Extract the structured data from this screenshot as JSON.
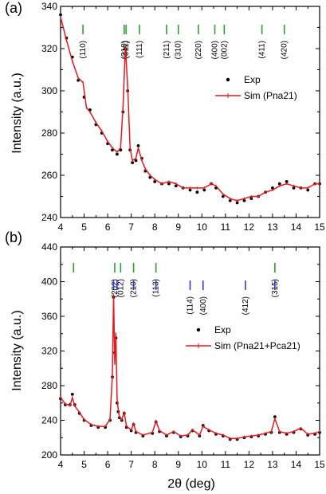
{
  "figure": {
    "panel_a_label": "(a)",
    "panel_b_label": "(b)",
    "xlabel": "2θ (deg)",
    "ylabel": "Intensity (a.u.)"
  },
  "colors": {
    "exp": "#000000",
    "sim": "#e8181c",
    "ticks_green": "#2ea02e",
    "ticks_blue": "#2b3bd6"
  },
  "chart_data": [
    {
      "panel": "(a)",
      "type": "line",
      "xlabel": "2θ (deg)",
      "ylabel": "Intensity (a.u.)",
      "xlim": [
        4,
        15
      ],
      "ylim": [
        240,
        340
      ],
      "xticks": [
        4,
        5,
        6,
        7,
        8,
        9,
        10,
        11,
        12,
        13,
        14,
        15
      ],
      "yticks": [
        240,
        260,
        280,
        300,
        320,
        340
      ],
      "legend": {
        "placement": "right",
        "entries": [
          "Exp",
          "Sim (Pna21)"
        ]
      },
      "reflections": [
        {
          "label": "(110)",
          "x": 4.95,
          "color": "green"
        },
        {
          "label": "(210)",
          "x": 6.7,
          "color": "green"
        },
        {
          "label": "(011)",
          "x": 6.78,
          "color": "green"
        },
        {
          "label": "(111)",
          "x": 7.35,
          "color": "green"
        },
        {
          "label": "(211)",
          "x": 8.5,
          "color": "green"
        },
        {
          "label": "(310)",
          "x": 9.0,
          "color": "green"
        },
        {
          "label": "(220)",
          "x": 9.85,
          "color": "green"
        },
        {
          "label": "(400)",
          "x": 10.55,
          "color": "green"
        },
        {
          "label": "(002)",
          "x": 10.95,
          "color": "green"
        },
        {
          "label": "(411)",
          "x": 12.55,
          "color": "green"
        },
        {
          "label": "(420)",
          "x": 13.5,
          "color": "green"
        }
      ],
      "series": [
        {
          "name": "Exp",
          "style": "points",
          "x": [
            4.0,
            4.25,
            4.5,
            4.75,
            5.0,
            5.25,
            5.5,
            5.75,
            6.0,
            6.2,
            6.4,
            6.55,
            6.65,
            6.75,
            6.85,
            6.95,
            7.05,
            7.2,
            7.3,
            7.45,
            7.6,
            7.8,
            8.0,
            8.3,
            8.6,
            8.9,
            9.2,
            9.5,
            9.8,
            10.1,
            10.4,
            10.6,
            10.9,
            11.2,
            11.5,
            11.8,
            12.1,
            12.4,
            12.7,
            13.0,
            13.3,
            13.6,
            13.9,
            14.2,
            14.5,
            14.8,
            15.0
          ],
          "y": [
            336,
            325,
            316,
            305,
            297,
            291,
            284,
            280,
            275,
            272,
            270,
            272,
            290,
            320,
            300,
            272,
            266,
            267,
            274,
            268,
            262,
            259,
            257,
            256,
            256,
            255,
            254,
            253,
            252,
            253,
            256,
            254,
            250,
            248,
            247,
            248,
            249,
            250,
            252,
            254,
            256,
            257,
            254,
            254,
            253,
            256,
            256
          ]
        },
        {
          "name": "Sim (Pna21)",
          "style": "line-with-markers",
          "x": [
            4.0,
            4.25,
            4.5,
            4.75,
            4.95,
            5.1,
            5.25,
            5.5,
            5.75,
            6.0,
            6.2,
            6.4,
            6.55,
            6.65,
            6.75,
            6.85,
            6.95,
            7.05,
            7.2,
            7.3,
            7.45,
            7.6,
            7.8,
            8.0,
            8.3,
            8.6,
            8.9,
            9.2,
            9.5,
            9.8,
            10.1,
            10.4,
            10.6,
            10.9,
            11.2,
            11.5,
            11.8,
            12.1,
            12.4,
            12.7,
            13.0,
            13.3,
            13.6,
            13.9,
            14.2,
            14.5,
            14.8,
            15.0
          ],
          "y": [
            335,
            324,
            314,
            306,
            304,
            292,
            290,
            285,
            281,
            276,
            273,
            271,
            273,
            292,
            321,
            302,
            273,
            267,
            268,
            273,
            267,
            263,
            260,
            258,
            256,
            257,
            256,
            254,
            254,
            254,
            254,
            256,
            255,
            251,
            249,
            248,
            249,
            250,
            250,
            252,
            253,
            255,
            256,
            255,
            254,
            254,
            256,
            256
          ]
        }
      ]
    },
    {
      "panel": "(b)",
      "type": "line",
      "xlabel": "2θ (deg)",
      "ylabel": "Intensity (a.u.)",
      "xlim": [
        4,
        15
      ],
      "ylim": [
        200,
        440
      ],
      "xticks": [
        4,
        5,
        6,
        7,
        8,
        9,
        10,
        11,
        12,
        13,
        14,
        15
      ],
      "yticks": [
        200,
        240,
        280,
        320,
        360,
        400,
        440
      ],
      "legend": {
        "placement": "right",
        "entries": [
          "Exp",
          "Sim (Pna21+Pca21)"
        ]
      },
      "reflections": [
        {
          "label": "",
          "x": 4.55,
          "color": "green"
        },
        {
          "label": "(202)",
          "x": 6.3,
          "color": "green"
        },
        {
          "label": "(012)",
          "x": 6.55,
          "color": "green"
        },
        {
          "label": "(210)",
          "x": 7.1,
          "color": "green"
        },
        {
          "label": "(113)",
          "x": 8.05,
          "color": "green"
        },
        {
          "label": "(315)",
          "x": 13.1,
          "color": "green"
        },
        {
          "label": "",
          "x": 6.25,
          "color": "blue"
        },
        {
          "label": "",
          "x": 6.4,
          "color": "blue"
        },
        {
          "label": "",
          "x": 7.1,
          "color": "blue"
        },
        {
          "label": "",
          "x": 8.05,
          "color": "blue"
        },
        {
          "label": "(114)",
          "x": 9.5,
          "color": "blue"
        },
        {
          "label": "(400)",
          "x": 10.05,
          "color": "blue"
        },
        {
          "label": "(412)",
          "x": 11.85,
          "color": "blue"
        },
        {
          "label": "",
          "x": 13.1,
          "color": "blue"
        }
      ],
      "series": [
        {
          "name": "Exp",
          "style": "points",
          "x": [
            4.0,
            4.2,
            4.4,
            4.5,
            4.6,
            4.8,
            5.0,
            5.3,
            5.6,
            5.9,
            6.1,
            6.2,
            6.25,
            6.3,
            6.35,
            6.4,
            6.45,
            6.5,
            6.6,
            6.7,
            6.8,
            7.0,
            7.1,
            7.2,
            7.5,
            7.9,
            8.05,
            8.2,
            8.5,
            8.8,
            9.1,
            9.4,
            9.6,
            9.9,
            10.05,
            10.3,
            10.6,
            10.9,
            11.2,
            11.5,
            11.8,
            12.1,
            12.4,
            12.7,
            12.95,
            13.1,
            13.3,
            13.6,
            13.9,
            14.2,
            14.5,
            14.8,
            15.0
          ],
          "y": [
            265,
            258,
            258,
            270,
            258,
            248,
            240,
            234,
            232,
            232,
            240,
            290,
            382,
            318,
            335,
            260,
            250,
            243,
            240,
            248,
            232,
            228,
            235,
            226,
            222,
            225,
            238,
            227,
            222,
            226,
            221,
            222,
            228,
            222,
            234,
            228,
            224,
            222,
            218,
            218,
            220,
            221,
            222,
            224,
            226,
            244,
            226,
            224,
            226,
            230,
            223,
            224,
            226
          ]
        },
        {
          "name": "Sim (Pna21+Pca21)",
          "style": "line-with-markers",
          "x": [
            4.0,
            4.2,
            4.4,
            4.5,
            4.6,
            4.8,
            5.0,
            5.3,
            5.6,
            5.9,
            6.1,
            6.2,
            6.25,
            6.3,
            6.35,
            6.4,
            6.45,
            6.5,
            6.6,
            6.7,
            6.8,
            7.0,
            7.1,
            7.2,
            7.5,
            7.9,
            8.05,
            8.2,
            8.5,
            8.8,
            9.1,
            9.4,
            9.6,
            9.9,
            10.05,
            10.3,
            10.6,
            10.9,
            11.2,
            11.5,
            11.8,
            12.1,
            12.4,
            12.7,
            12.95,
            13.1,
            13.3,
            13.6,
            13.9,
            14.2,
            14.5,
            14.8,
            15.0
          ],
          "y": [
            266,
            259,
            257,
            266,
            257,
            249,
            241,
            235,
            233,
            233,
            241,
            292,
            385,
            305,
            340,
            265,
            252,
            244,
            241,
            249,
            233,
            229,
            236,
            227,
            223,
            226,
            239,
            228,
            223,
            227,
            222,
            223,
            229,
            223,
            233,
            229,
            225,
            223,
            219,
            219,
            221,
            222,
            223,
            225,
            227,
            242,
            227,
            225,
            227,
            231,
            224,
            225,
            227
          ]
        }
      ]
    }
  ]
}
